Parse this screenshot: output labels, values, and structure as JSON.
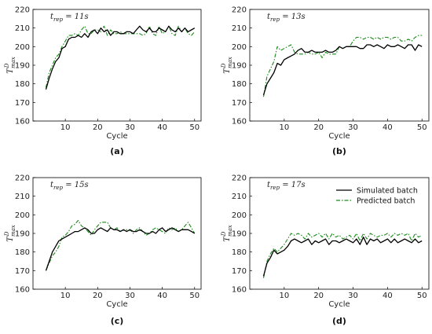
{
  "legend": [
    {
      "name": "Simulated batch",
      "color": "#000000",
      "dash": "solid"
    },
    {
      "name": "Predicted batch",
      "color": "#1a8a1a",
      "dash": "dashdot"
    }
  ],
  "chart_data": [
    {
      "type": "line",
      "panel": "(a)",
      "annotation": "t_rep = 11s",
      "xlabel": "Cycle",
      "ylabel": "T_max^D",
      "xlim": [
        0,
        52
      ],
      "ylim": [
        160,
        220
      ],
      "xticks": [
        10,
        20,
        30,
        40,
        50
      ],
      "yticks": [
        160,
        170,
        180,
        190,
        200,
        210,
        220
      ],
      "x": [
        4,
        5,
        6,
        7,
        8,
        9,
        10,
        11,
        12,
        13,
        14,
        15,
        16,
        17,
        18,
        19,
        20,
        21,
        22,
        23,
        24,
        25,
        26,
        27,
        28,
        29,
        30,
        31,
        32,
        33,
        34,
        35,
        36,
        37,
        38,
        39,
        40,
        41,
        42,
        43,
        44,
        45,
        46,
        47,
        48,
        49,
        50
      ],
      "series": [
        {
          "name": "Simulated batch",
          "values": [
            177,
            183,
            188,
            192,
            194,
            199,
            200,
            204,
            205,
            205,
            206,
            205,
            207,
            205,
            208,
            209,
            207,
            210,
            208,
            209,
            206,
            208,
            208,
            207,
            207,
            208,
            208,
            207,
            209,
            211,
            209,
            208,
            210,
            208,
            208,
            210,
            209,
            208,
            211,
            209,
            208,
            210,
            208,
            210,
            208,
            209,
            210
          ]
        },
        {
          "name": "Predicted batch",
          "values": [
            178,
            186,
            190,
            194,
            196,
            200,
            203,
            206,
            206,
            207,
            206,
            209,
            211,
            207,
            207,
            209,
            209,
            208,
            211,
            206,
            209,
            207,
            207,
            208,
            207,
            207,
            207,
            207,
            207,
            207,
            206,
            207,
            211,
            207,
            206,
            211,
            207,
            208,
            211,
            207,
            206,
            211,
            208,
            210,
            207,
            206,
            208
          ]
        }
      ]
    },
    {
      "type": "line",
      "panel": "(b)",
      "annotation": "t_rep = 13s",
      "xlabel": "Cycle",
      "ylabel": "T_max^D",
      "xlim": [
        0,
        52
      ],
      "ylim": [
        160,
        220
      ],
      "xticks": [
        10,
        20,
        30,
        40,
        50
      ],
      "yticks": [
        160,
        170,
        180,
        190,
        200,
        210,
        220
      ],
      "x": [
        4,
        5,
        6,
        7,
        8,
        9,
        10,
        11,
        12,
        13,
        14,
        15,
        16,
        17,
        18,
        19,
        20,
        21,
        22,
        23,
        24,
        25,
        26,
        27,
        28,
        29,
        30,
        31,
        32,
        33,
        34,
        35,
        36,
        37,
        38,
        39,
        40,
        41,
        42,
        43,
        44,
        45,
        46,
        47,
        48,
        49,
        50
      ],
      "series": [
        {
          "name": "Simulated batch",
          "values": [
            174,
            180,
            183,
            186,
            191,
            190,
            193,
            194,
            195,
            196,
            198,
            199,
            197,
            197,
            198,
            197,
            197,
            197,
            198,
            197,
            197,
            198,
            200,
            199,
            200,
            200,
            200,
            200,
            199,
            199,
            201,
            201,
            200,
            201,
            200,
            199,
            201,
            200,
            200,
            201,
            200,
            199,
            201,
            201,
            198,
            201,
            200
          ]
        },
        {
          "name": "Predicted batch",
          "values": [
            173,
            184,
            188,
            192,
            200,
            198,
            199,
            200,
            201,
            197,
            196,
            196,
            196,
            197,
            196,
            196,
            197,
            194,
            197,
            196,
            196,
            196,
            200,
            199,
            200,
            200,
            203,
            205,
            205,
            204,
            205,
            205,
            204,
            205,
            204,
            205,
            205,
            204,
            205,
            205,
            203,
            203,
            204,
            203,
            205,
            206,
            206
          ]
        }
      ]
    },
    {
      "type": "line",
      "panel": "(c)",
      "annotation": "t_rep = 15s",
      "xlabel": "Cycle",
      "ylabel": "T_max^D",
      "xlim": [
        0,
        52
      ],
      "ylim": [
        160,
        220
      ],
      "xticks": [
        10,
        20,
        30,
        40,
        50
      ],
      "yticks": [
        160,
        170,
        180,
        190,
        200,
        210,
        220
      ],
      "x": [
        4,
        5,
        6,
        7,
        8,
        9,
        10,
        11,
        12,
        13,
        14,
        15,
        16,
        17,
        18,
        19,
        20,
        21,
        22,
        23,
        24,
        25,
        26,
        27,
        28,
        29,
        30,
        31,
        32,
        33,
        34,
        35,
        36,
        37,
        38,
        39,
        40,
        41,
        42,
        43,
        44,
        45,
        46,
        47,
        48,
        49,
        50
      ],
      "series": [
        {
          "name": "Simulated batch",
          "values": [
            170,
            175,
            180,
            183,
            186,
            187,
            188,
            189,
            190,
            191,
            191,
            192,
            193,
            192,
            190,
            190,
            192,
            193,
            192,
            191,
            193,
            192,
            192,
            191,
            192,
            191,
            192,
            191,
            191,
            192,
            191,
            190,
            190,
            191,
            190,
            192,
            193,
            191,
            192,
            193,
            192,
            191,
            192,
            192,
            192,
            191,
            190
          ]
        },
        {
          "name": "Predicted batch",
          "values": [
            170,
            174,
            178,
            180,
            183,
            188,
            189,
            191,
            194,
            195,
            197,
            194,
            193,
            191,
            189,
            192,
            194,
            196,
            196,
            196,
            193,
            192,
            193,
            191,
            192,
            192,
            192,
            190,
            192,
            193,
            191,
            189,
            190,
            192,
            193,
            192,
            191,
            190,
            193,
            192,
            193,
            191,
            192,
            194,
            196,
            193,
            190
          ]
        }
      ]
    },
    {
      "type": "line",
      "panel": "(d)",
      "annotation": "t_rep = 17s",
      "xlabel": "Cycle",
      "ylabel": "T_max^D",
      "xlim": [
        0,
        52
      ],
      "ylim": [
        160,
        220
      ],
      "xticks": [
        10,
        20,
        30,
        40,
        50
      ],
      "yticks": [
        160,
        170,
        180,
        190,
        200,
        210,
        220
      ],
      "legend_position": "top-right",
      "x": [
        4,
        5,
        6,
        7,
        8,
        9,
        10,
        11,
        12,
        13,
        14,
        15,
        16,
        17,
        18,
        19,
        20,
        21,
        22,
        23,
        24,
        25,
        26,
        27,
        28,
        29,
        30,
        31,
        32,
        33,
        34,
        35,
        36,
        37,
        38,
        39,
        40,
        41,
        42,
        43,
        44,
        45,
        46,
        47,
        48,
        49,
        50
      ],
      "series": [
        {
          "name": "Simulated batch",
          "values": [
            167,
            174,
            177,
            181,
            179,
            180,
            181,
            183,
            186,
            187,
            186,
            185,
            186,
            187,
            184,
            186,
            185,
            186,
            187,
            184,
            186,
            186,
            185,
            186,
            187,
            186,
            185,
            187,
            184,
            188,
            184,
            187,
            186,
            187,
            185,
            186,
            187,
            185,
            187,
            185,
            186,
            187,
            186,
            185,
            187,
            185,
            186
          ]
        },
        {
          "name": "Predicted batch",
          "values": [
            166,
            175,
            179,
            182,
            180,
            182,
            184,
            187,
            190,
            189,
            190,
            189,
            187,
            190,
            188,
            189,
            190,
            188,
            190,
            187,
            190,
            188,
            189,
            187,
            188,
            189,
            187,
            190,
            186,
            190,
            187,
            190,
            189,
            188,
            189,
            189,
            190,
            188,
            190,
            189,
            190,
            189,
            190,
            186,
            190,
            188,
            189
          ]
        }
      ]
    }
  ]
}
